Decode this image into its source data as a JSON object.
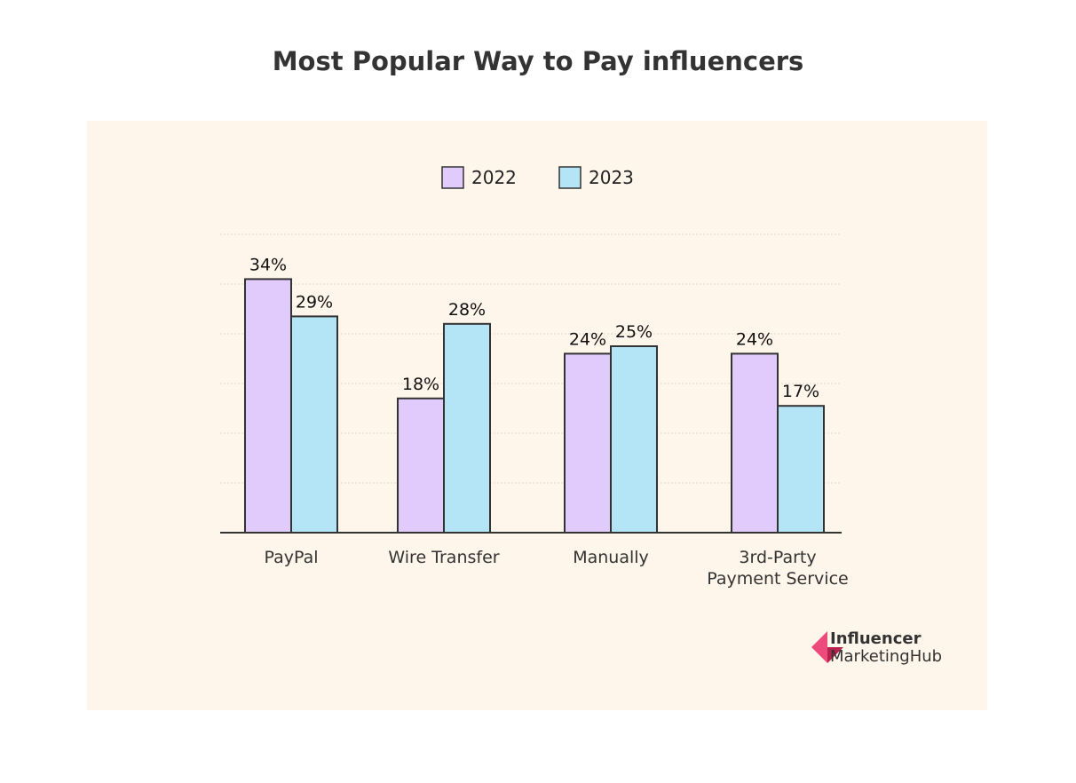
{
  "chart_data": {
    "type": "bar",
    "title": "Most Popular Way to Pay influencers",
    "categories": [
      "PayPal",
      "Wire Transfer",
      "Manually",
      "3rd-Party Payment Service"
    ],
    "series": [
      {
        "name": "2022",
        "values": [
          34,
          18,
          24,
          24
        ],
        "color": "#e1cbfd"
      },
      {
        "name": "2023",
        "values": [
          29,
          28,
          25,
          17
        ],
        "color": "#b3e5f6"
      }
    ],
    "value_suffix": "%",
    "ylim": [
      0,
      40
    ],
    "grid": true,
    "legend": "top-center"
  },
  "logo": {
    "line1": "Influencer",
    "line2": "MarketingHub"
  }
}
